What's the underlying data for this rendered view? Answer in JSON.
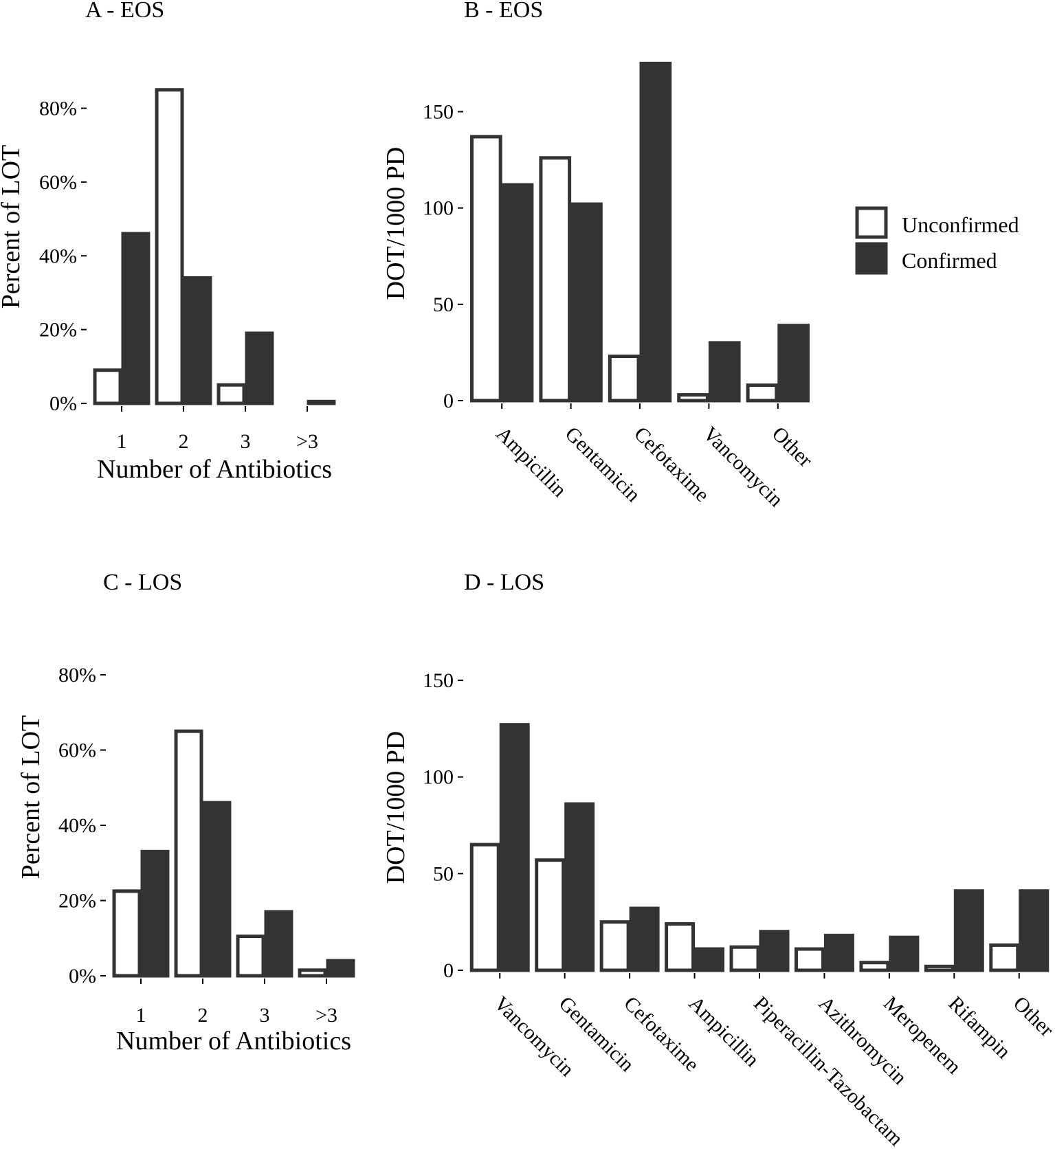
{
  "legend": {
    "items": [
      {
        "label": "Unconfirmed",
        "fill": "#ffffff"
      },
      {
        "label": "Confirmed",
        "fill": "#333333"
      }
    ]
  },
  "colors": {
    "unconfirmed": "#ffffff",
    "confirmed": "#333333",
    "outline": "#333333"
  },
  "chart_data": [
    {
      "panel": "A",
      "title": "A - EOS",
      "type": "bar",
      "categories": [
        "1",
        "2",
        "3",
        ">3"
      ],
      "series": [
        {
          "name": "Unconfirmed",
          "values": [
            9,
            85,
            5,
            0
          ]
        },
        {
          "name": "Confirmed",
          "values": [
            46,
            34,
            19,
            0.5
          ]
        }
      ],
      "xlabel": "Number of Antibiotics",
      "ylabel": "Percent of LOT",
      "yticks": [
        0,
        20,
        40,
        60,
        80
      ],
      "ytick_labels": [
        "0%",
        "20%",
        "40%",
        "60%",
        "80%"
      ],
      "ylim": [
        0,
        87
      ],
      "rotate_x": false
    },
    {
      "panel": "B",
      "title": "B - EOS",
      "type": "bar",
      "categories": [
        "Ampicillin",
        "Gentamicin",
        "Cefotaxime",
        "Vancomycin",
        "Other"
      ],
      "series": [
        {
          "name": "Unconfirmed",
          "values": [
            137,
            126,
            23,
            3,
            8
          ]
        },
        {
          "name": "Confirmed",
          "values": [
            112,
            102,
            175,
            30,
            39
          ]
        }
      ],
      "xlabel": "",
      "ylabel": "DOT/1000 PD",
      "yticks": [
        0,
        50,
        100,
        150
      ],
      "ytick_labels": [
        "0",
        "50",
        "100",
        "150"
      ],
      "ylim": [
        0,
        178
      ],
      "rotate_x": true
    },
    {
      "panel": "C",
      "title": "C - LOS",
      "type": "bar",
      "categories": [
        "1",
        "2",
        "3",
        ">3"
      ],
      "series": [
        {
          "name": "Unconfirmed",
          "values": [
            22.5,
            65,
            10.5,
            1.5
          ]
        },
        {
          "name": "Confirmed",
          "values": [
            33,
            46,
            17,
            4
          ]
        }
      ],
      "xlabel": "Number of Antibiotics",
      "ylabel": "Percent of LOT",
      "yticks": [
        0,
        20,
        40,
        60,
        80
      ],
      "ytick_labels": [
        "0%",
        "20%",
        "40%",
        "60%",
        "80%"
      ],
      "ylim": [
        0,
        80
      ],
      "rotate_x": false
    },
    {
      "panel": "D",
      "title": "D - LOS",
      "type": "bar",
      "categories": [
        "Vancomycin",
        "Gentamicin",
        "Cefotaxime",
        "Ampicillin",
        "Piperacillin-Tazobactam",
        "Azithromycin",
        "Meropenem",
        "Rifampin",
        "Other"
      ],
      "series": [
        {
          "name": "Unconfirmed",
          "values": [
            65,
            57,
            25,
            24,
            12,
            11,
            4,
            2,
            13
          ]
        },
        {
          "name": "Confirmed",
          "values": [
            127,
            86,
            32,
            11,
            20,
            18,
            17,
            41,
            41
          ]
        }
      ],
      "xlabel": "",
      "ylabel": "DOT/1000 PD",
      "yticks": [
        0,
        50,
        100,
        150
      ],
      "ytick_labels": [
        "0",
        "50",
        "100",
        "150"
      ],
      "ylim": [
        0,
        150
      ],
      "rotate_x": true
    }
  ]
}
